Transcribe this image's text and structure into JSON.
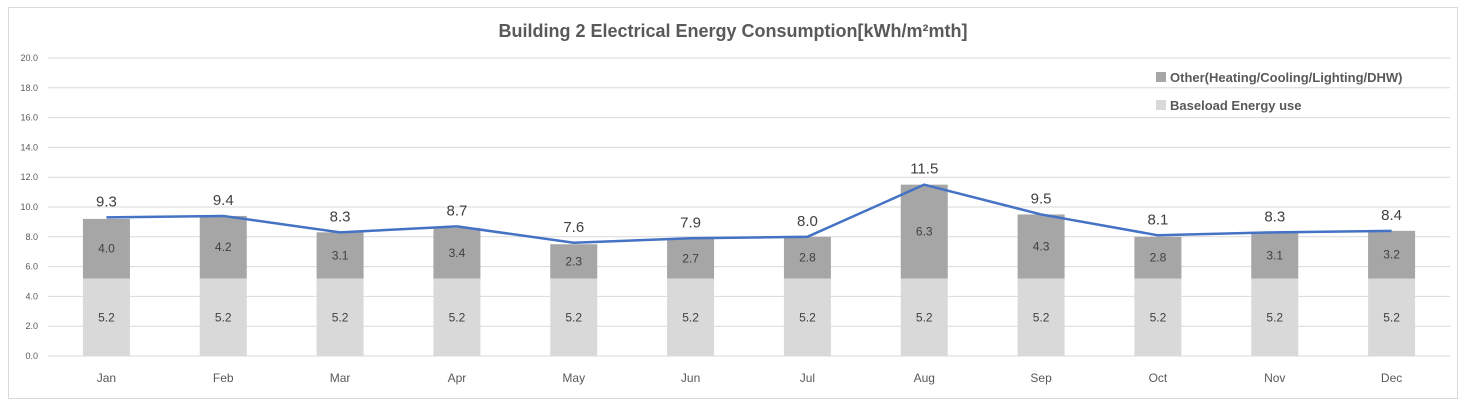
{
  "chart_data": {
    "type": "bar",
    "stacked": true,
    "title": "Building 2 Electrical Energy Consumption[kWh/m²mth]",
    "xlabel": "",
    "ylabel": "",
    "ylim": [
      0,
      20
    ],
    "yticks": [
      "0.0",
      "2.0",
      "4.0",
      "6.0",
      "8.0",
      "10.0",
      "12.0",
      "14.0",
      "16.0",
      "18.0",
      "20.0"
    ],
    "grid": true,
    "legend_position": "top-right",
    "categories": [
      "Jan",
      "Feb",
      "Mar",
      "Apr",
      "May",
      "Jun",
      "Jul",
      "Aug",
      "Sep",
      "Oct",
      "Nov",
      "Dec"
    ],
    "series": [
      {
        "name": "Baseload Energy use",
        "color": "#d9d9d9",
        "values": [
          5.2,
          5.2,
          5.2,
          5.2,
          5.2,
          5.2,
          5.2,
          5.2,
          5.2,
          5.2,
          5.2,
          5.2
        ],
        "labels": [
          "5.2",
          "5.2",
          "5.2",
          "5.2",
          "5.2",
          "5.2",
          "5.2",
          "5.2",
          "5.2",
          "5.2",
          "5.2",
          "5.2"
        ]
      },
      {
        "name": "Other(Heating/Cooling/Lighting/DHW)",
        "color": "#a6a6a6",
        "values": [
          4.0,
          4.2,
          3.1,
          3.4,
          2.3,
          2.7,
          2.8,
          6.3,
          4.3,
          2.8,
          3.1,
          3.2
        ],
        "labels": [
          "4.0",
          "4.2",
          "3.1",
          "3.4",
          "2.3",
          "2.7",
          "2.8",
          "6.3",
          "4.3",
          "2.8",
          "3.1",
          "3.2"
        ]
      }
    ],
    "total_line": {
      "color": "#4472c4",
      "values": [
        9.3,
        9.4,
        8.3,
        8.7,
        7.6,
        7.9,
        8.0,
        11.5,
        9.5,
        8.1,
        8.3,
        8.4
      ],
      "labels": [
        "9.3",
        "9.4",
        "8.3",
        "8.7",
        "7.6",
        "7.9",
        "8.0",
        "11.5",
        "9.5",
        "8.1",
        "8.3",
        "8.4"
      ]
    }
  }
}
